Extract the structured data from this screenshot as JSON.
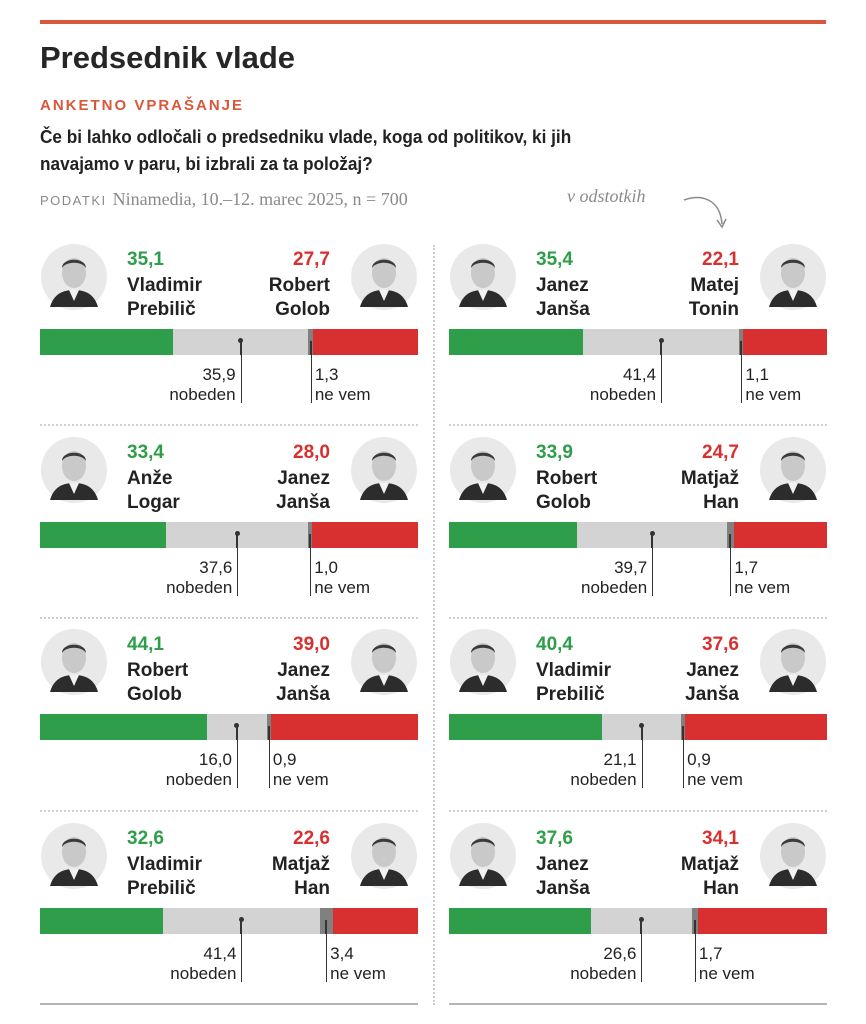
{
  "header": {
    "title": "Predsednik vlade",
    "kicker": "ANKETNO VPRAŠANJE",
    "question": "Če bi lahko odločali o predsedniku vlade, koga od politikov, ki jih navajamo v paru, bi izbrali za ta položaj?",
    "source_label": "PODATKI",
    "source_text": "Ninamedia, 10.–12. marec 2025, n = 700",
    "unit_note": "v odstotkih"
  },
  "colors": {
    "accent": "#d9573a",
    "left_candidate": "#2e9e4a",
    "right_candidate": "#d83030",
    "nobody": "#d3d3d3",
    "dont_know": "#808080"
  },
  "chart_data": {
    "type": "bar",
    "title": "Predsednik vlade",
    "unit": "v odstotkih",
    "labels": {
      "nobody": "nobeden",
      "dont_know": "ne vem"
    },
    "pairs": [
      {
        "left": {
          "first": "Vladimir",
          "last": "Prebilič",
          "pct": "35,1"
        },
        "right": {
          "first": "Robert",
          "last": "Golob",
          "pct": "27,7"
        },
        "nobody": "35,9",
        "dont_know": "1,3"
      },
      {
        "left": {
          "first": "Janez",
          "last": "Janša",
          "pct": "35,4"
        },
        "right": {
          "first": "Matej",
          "last": "Tonin",
          "pct": "22,1"
        },
        "nobody": "41,4",
        "dont_know": "1,1"
      },
      {
        "left": {
          "first": "Anže",
          "last": "Logar",
          "pct": "33,4"
        },
        "right": {
          "first": "Janez",
          "last": "Janša",
          "pct": "28,0"
        },
        "nobody": "37,6",
        "dont_know": "1,0"
      },
      {
        "left": {
          "first": "Robert",
          "last": "Golob",
          "pct": "33,9"
        },
        "right": {
          "first": "Matjaž",
          "last": "Han",
          "pct": "24,7"
        },
        "nobody": "39,7",
        "dont_know": "1,7"
      },
      {
        "left": {
          "first": "Robert",
          "last": "Golob",
          "pct": "44,1"
        },
        "right": {
          "first": "Janez",
          "last": "Janša",
          "pct": "39,0"
        },
        "nobody": "16,0",
        "dont_know": "0,9"
      },
      {
        "left": {
          "first": "Vladimir",
          "last": "Prebilič",
          "pct": "40,4"
        },
        "right": {
          "first": "Janez",
          "last": "Janša",
          "pct": "37,6"
        },
        "nobody": "21,1",
        "dont_know": "0,9"
      },
      {
        "left": {
          "first": "Vladimir",
          "last": "Prebilič",
          "pct": "32,6"
        },
        "right": {
          "first": "Matjaž",
          "last": "Han",
          "pct": "22,6"
        },
        "nobody": "41,4",
        "dont_know": "3,4"
      },
      {
        "left": {
          "first": "Janez",
          "last": "Janša",
          "pct": "37,6"
        },
        "right": {
          "first": "Matjaž",
          "last": "Han",
          "pct": "34,1"
        },
        "nobody": "26,6",
        "dont_know": "1,7"
      }
    ]
  }
}
